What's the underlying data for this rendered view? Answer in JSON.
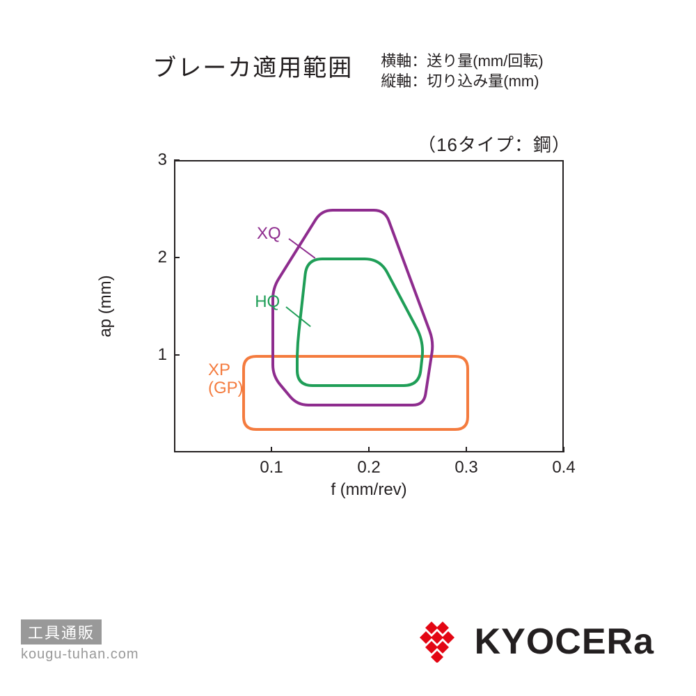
{
  "title": "ブレーカ適用範囲",
  "axis_desc_line1": "横軸：送り量(mm/回転)",
  "axis_desc_line2": "縦軸：切り込み量(mm)",
  "subtitle": "（16タイプ：鋼）",
  "chart": {
    "type": "region-outline",
    "xlim": [
      0,
      0.4
    ],
    "ylim": [
      0,
      3
    ],
    "xlabel": "f (mm/rev)",
    "ylabel": "ap (mm)",
    "xticks": [
      0.1,
      0.2,
      0.3,
      0.4
    ],
    "yticks": [
      1,
      2,
      3
    ],
    "border_color": "#231f20",
    "background_color": "#ffffff",
    "tick_fontsize": 24,
    "label_fontsize": 24,
    "line_width": 4,
    "series": {
      "XP": {
        "label_line1": "XP",
        "label_line2": "(GP)",
        "color": "#f47b3e",
        "label_x": 0.035,
        "label_y": 0.85,
        "corner_radius": 18,
        "vertices": [
          [
            0.07,
            0.25
          ],
          [
            0.3,
            0.25
          ],
          [
            0.3,
            1.0
          ],
          [
            0.07,
            1.0
          ]
        ]
      },
      "HQ": {
        "label": "HQ",
        "color": "#1f9e57",
        "label_x": 0.083,
        "label_y": 1.55,
        "leader": {
          "from": [
            0.115,
            1.5
          ],
          "to": [
            0.14,
            1.3
          ]
        },
        "corner_radius": 22,
        "vertices": [
          [
            0.125,
            0.7
          ],
          [
            0.25,
            0.7
          ],
          [
            0.255,
            1.15
          ],
          [
            0.21,
            2.0
          ],
          [
            0.135,
            2.0
          ],
          [
            0.125,
            1.1
          ]
        ]
      },
      "XQ": {
        "label": "XQ",
        "color": "#8e2c8e",
        "label_x": 0.085,
        "label_y": 2.25,
        "leader": {
          "from": [
            0.118,
            2.2
          ],
          "to": [
            0.145,
            2.0
          ]
        },
        "corner_radius": 16,
        "vertices": [
          [
            0.125,
            0.5
          ],
          [
            0.255,
            0.5
          ],
          [
            0.265,
            1.15
          ],
          [
            0.215,
            2.5
          ],
          [
            0.15,
            2.5
          ],
          [
            0.1,
            1.7
          ],
          [
            0.1,
            0.8
          ]
        ]
      }
    }
  },
  "footer": {
    "shop_box": "工具通販",
    "shop_url": "kougu-tuhan.com",
    "brand_text": "KYOCERa",
    "brand_color": "#e30613",
    "shop_box_bg": "#999999"
  }
}
